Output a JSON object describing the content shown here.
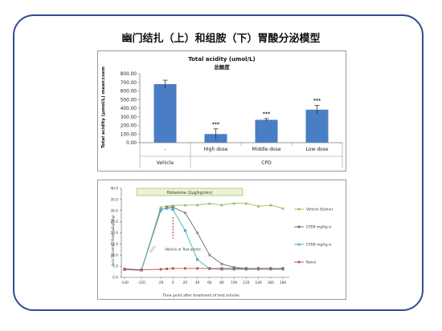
{
  "slide": {
    "title": "幽门结扎（上）和组胺（下）胃酸分泌模型"
  },
  "chart_data": [
    {
      "type": "bar",
      "title": "Total acidity (umol/L)",
      "subtitle": "总酸度",
      "ylabel": "Total acidity (μmol/L) mean±sem",
      "ylim": [
        0,
        800
      ],
      "yticks": [
        "0.00",
        "100.00",
        "200.00",
        "300.00",
        "400.00",
        "500.00",
        "600.00",
        "700.00",
        "800.00"
      ],
      "categories": [
        "-",
        "High dose",
        "Middle dose",
        "Low dose"
      ],
      "values": [
        680,
        100,
        265,
        383
      ],
      "errors": [
        45,
        60,
        15,
        50
      ],
      "significance": [
        "",
        "***",
        "***",
        "***"
      ],
      "groups": [
        {
          "label": "Vehicle",
          "from": 0,
          "to": 0
        },
        {
          "label": "CPD",
          "from": 1,
          "to": 3
        }
      ],
      "bar_color": "#4a7ec4",
      "legend": "none",
      "grid": false
    },
    {
      "type": "line",
      "xlabel": "Time point after treatment of test articles",
      "ylabel": "Acid Secretion Rate (μEq/h/kg)",
      "banner": "Histamine (2μg/kg/min)",
      "annotation": "Vehicle or Test article",
      "ylim": [
        0,
        40
      ],
      "yticks": [
        "0.0",
        "5.0",
        "10.0",
        "15.0",
        "20.0",
        "25.0",
        "30.0",
        "35.0",
        "40.0"
      ],
      "x": [
        -140,
        -120,
        -20,
        -10,
        0,
        20,
        40,
        60,
        80,
        100,
        120,
        140,
        160,
        180
      ],
      "xticks": [
        "-140",
        "-120",
        "-20",
        "0",
        "20",
        "40",
        "60",
        "80",
        "100",
        "120",
        "140",
        "160",
        "180"
      ],
      "series": [
        {
          "name": "Vehicle (Saline)",
          "color": "#9bbb59",
          "marker": "triangle",
          "values": [
            3.5,
            3.2,
            31.5,
            32.0,
            32.3,
            32.5,
            32.5,
            33.2,
            32.5,
            33.3,
            33.2,
            32.0,
            32.5,
            31.0
          ]
        },
        {
          "name": "CPD4 mg/kg iv",
          "color": "#6d6d6d",
          "marker": "x",
          "values": [
            3.5,
            3.2,
            30.0,
            31.5,
            31.5,
            29.0,
            20.0,
            10.0,
            6.0,
            4.5,
            4.0,
            4.0,
            4.0,
            4.0
          ]
        },
        {
          "name": "CPD8 mg/kg iv",
          "color": "#4bacc6",
          "marker": "square",
          "values": [
            3.8,
            3.4,
            30.5,
            31.0,
            30.5,
            21.0,
            8.0,
            3.8,
            3.6,
            3.6,
            3.6,
            3.6,
            3.6,
            3.6
          ]
        },
        {
          "name": "Naive",
          "color": "#c0504d",
          "marker": "circle",
          "values": [
            3.6,
            3.4,
            3.6,
            3.8,
            4.0,
            4.0,
            4.0,
            4.0,
            4.0,
            4.0,
            4.0,
            4.0,
            4.0,
            4.0
          ]
        }
      ],
      "legend": "right",
      "grid": false
    }
  ]
}
